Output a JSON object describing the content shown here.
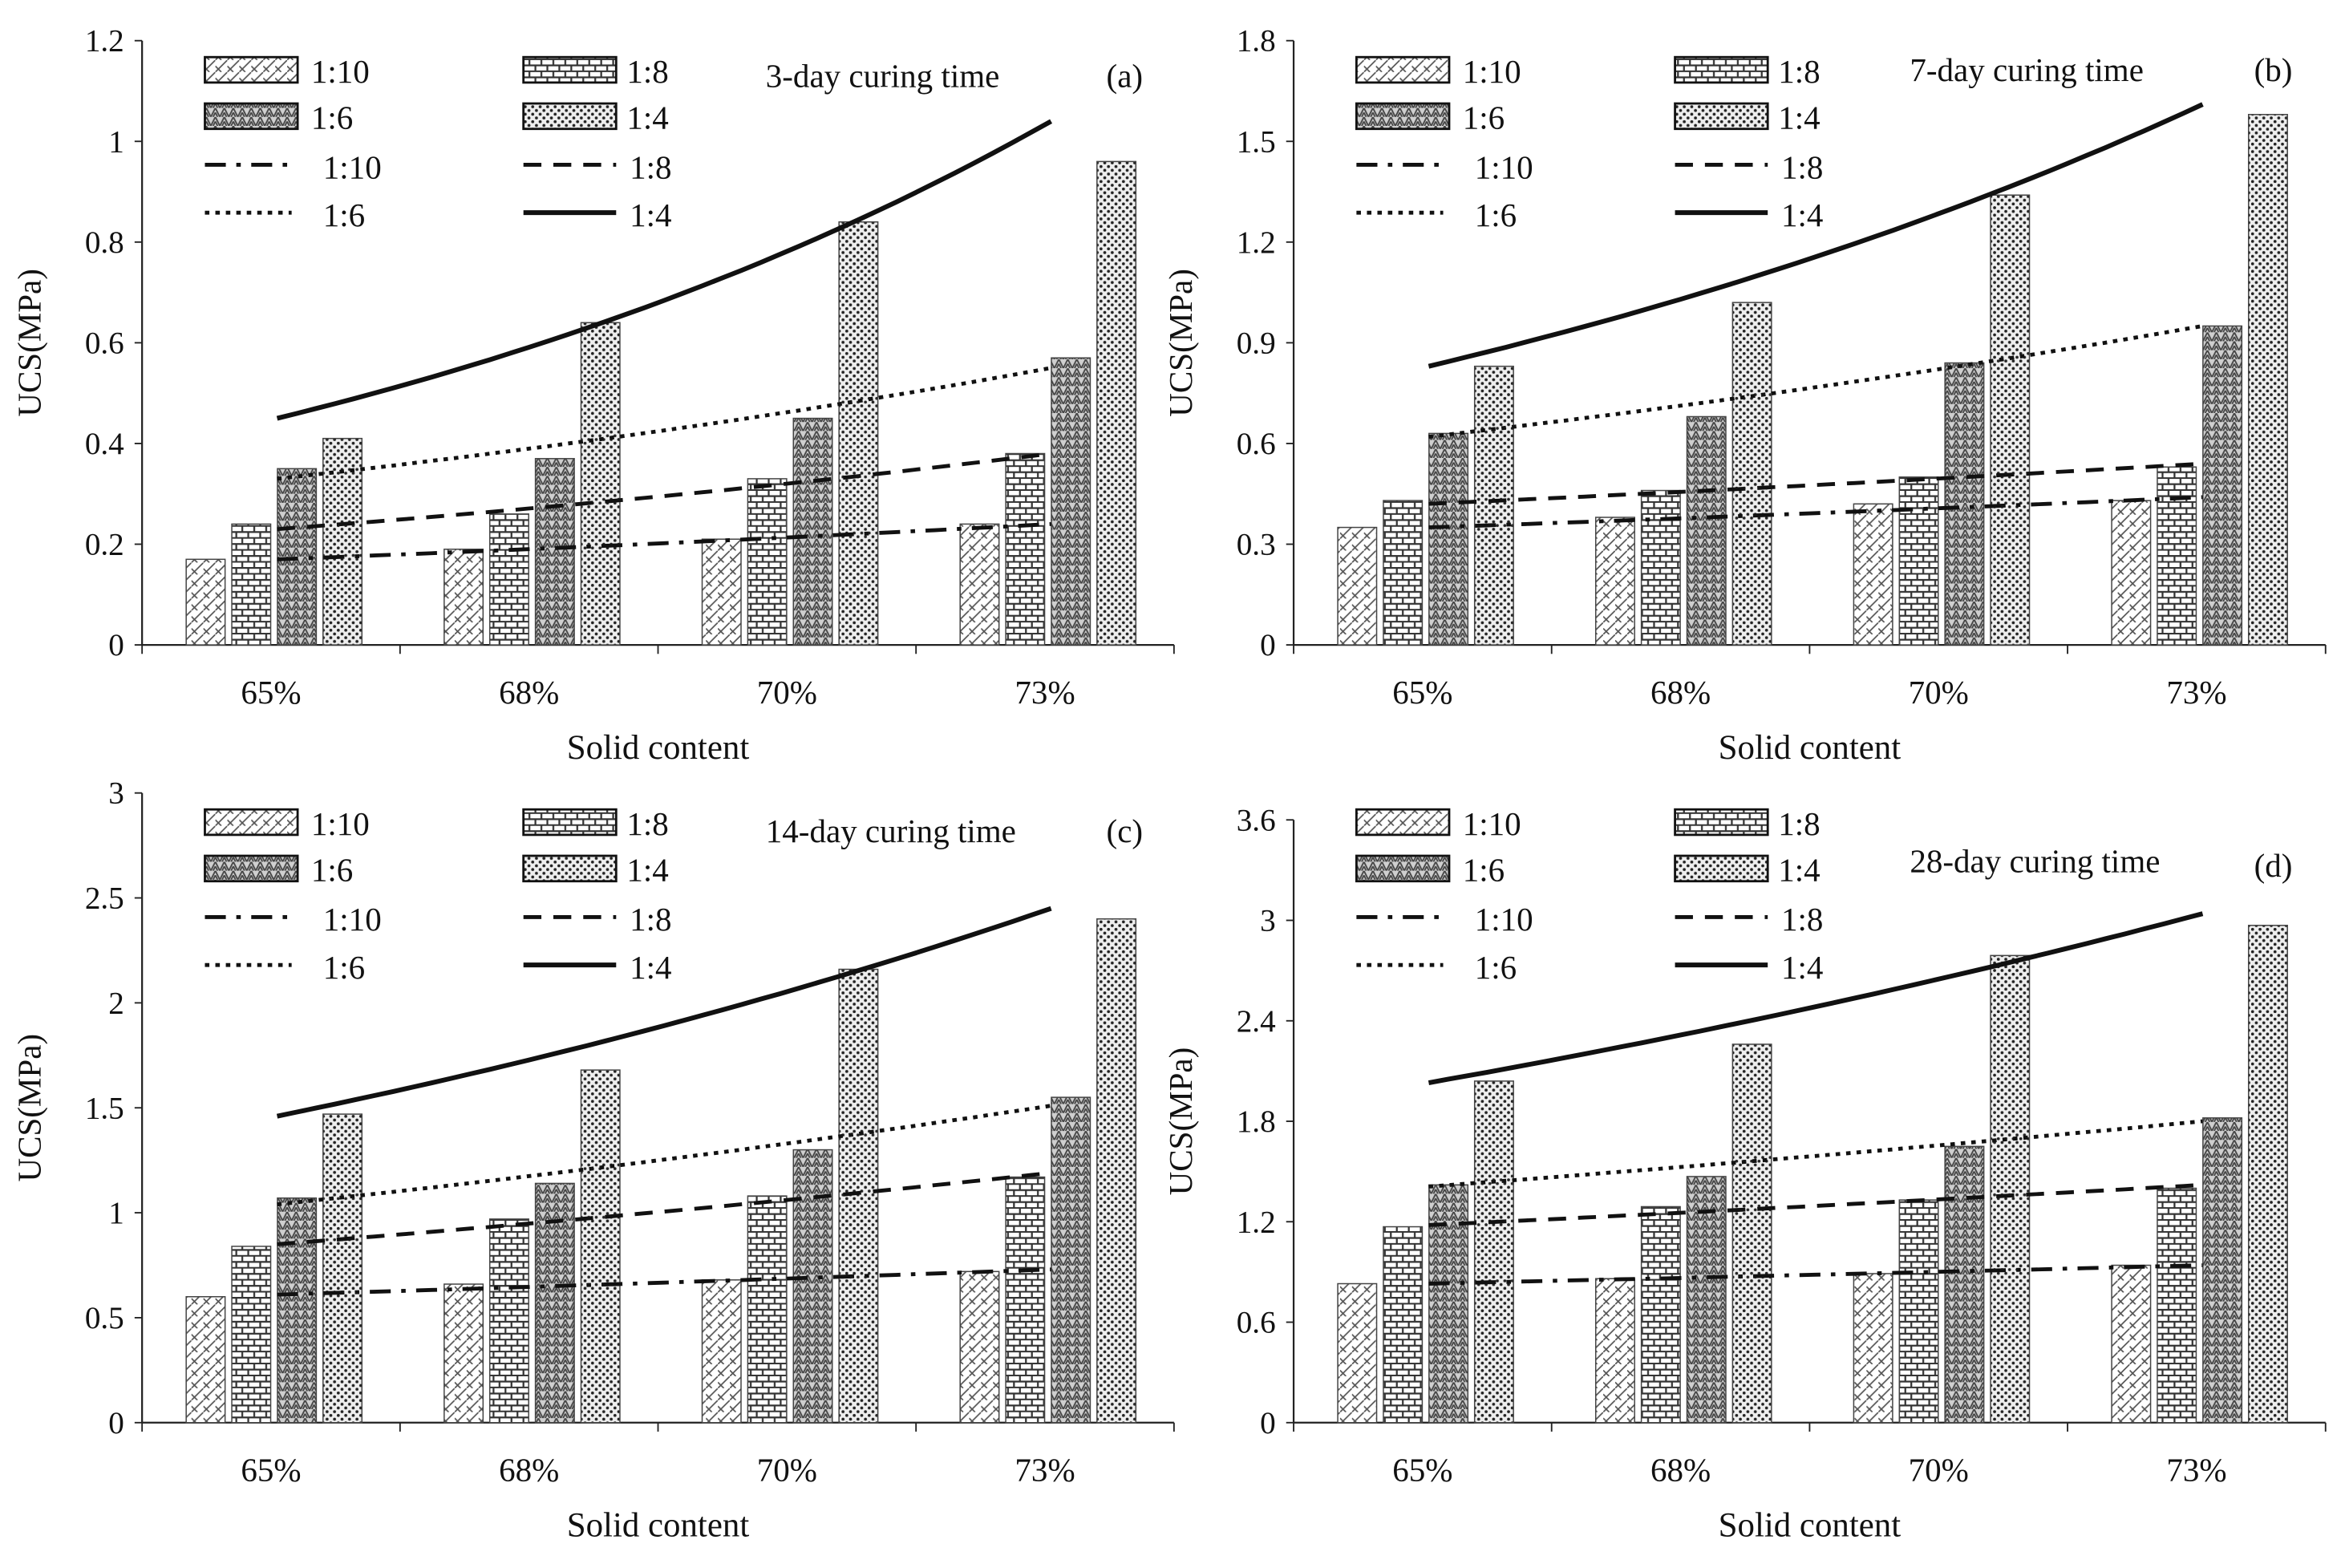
{
  "chart_data": [
    {
      "type": "bar",
      "panel_label": "(a)",
      "title": "3-day curing time",
      "xlabel": "Solid content",
      "ylabel": "UCS(MPa)",
      "ylim": [
        0,
        1.2
      ],
      "yticks": [
        "0",
        "0.2",
        "0.4",
        "0.6",
        "0.8",
        "1",
        "1.2"
      ],
      "categories": [
        "65%",
        "68%",
        "70%",
        "73%"
      ],
      "series": [
        {
          "name": "1:10",
          "values": [
            0.17,
            0.19,
            0.21,
            0.24
          ]
        },
        {
          "name": "1:8",
          "values": [
            0.24,
            0.26,
            0.33,
            0.38
          ]
        },
        {
          "name": "1:6",
          "values": [
            0.35,
            0.37,
            0.45,
            0.57
          ]
        },
        {
          "name": "1:4",
          "values": [
            0.41,
            0.64,
            0.84,
            0.96
          ]
        }
      ],
      "trendlines": [
        {
          "name": "1:10",
          "start": 0.17,
          "end": 0.24
        },
        {
          "name": "1:8",
          "start": 0.23,
          "end": 0.38
        },
        {
          "name": "1:6",
          "start": 0.33,
          "end": 0.55
        },
        {
          "name": "1:4",
          "start": 0.45,
          "end": 1.04
        }
      ]
    },
    {
      "type": "bar",
      "panel_label": "(b)",
      "title": "7-day curing time",
      "xlabel": "Solid content",
      "ylabel": "UCS(MPa)",
      "ylim": [
        0,
        1.8
      ],
      "yticks": [
        "0",
        "0.3",
        "0.6",
        "0.9",
        "1.2",
        "1.5",
        "1.8"
      ],
      "categories": [
        "65%",
        "68%",
        "70%",
        "73%"
      ],
      "series": [
        {
          "name": "1:10",
          "values": [
            0.35,
            0.38,
            0.42,
            0.43
          ]
        },
        {
          "name": "1:8",
          "values": [
            0.43,
            0.46,
            0.5,
            0.53
          ]
        },
        {
          "name": "1:6",
          "values": [
            0.63,
            0.68,
            0.84,
            0.95
          ]
        },
        {
          "name": "1:4",
          "values": [
            0.83,
            1.02,
            1.34,
            1.58
          ]
        }
      ],
      "trendlines": [
        {
          "name": "1:10",
          "start": 0.35,
          "end": 0.44
        },
        {
          "name": "1:8",
          "start": 0.42,
          "end": 0.54
        },
        {
          "name": "1:6",
          "start": 0.62,
          "end": 0.95
        },
        {
          "name": "1:4",
          "start": 0.83,
          "end": 1.61
        }
      ]
    },
    {
      "type": "bar",
      "panel_label": "(c)",
      "title": "14-day curing time",
      "xlabel": "Solid content",
      "ylabel": "UCS(MPa)",
      "ylim": [
        0,
        3
      ],
      "yticks": [
        "0",
        "0.5",
        "1",
        "1.5",
        "2",
        "2.5",
        "3"
      ],
      "categories": [
        "65%",
        "68%",
        "70%",
        "73%"
      ],
      "series": [
        {
          "name": "1:10",
          "values": [
            0.6,
            0.66,
            0.68,
            0.72
          ]
        },
        {
          "name": "1:8",
          "values": [
            0.84,
            0.97,
            1.08,
            1.17
          ]
        },
        {
          "name": "1:6",
          "values": [
            1.07,
            1.14,
            1.3,
            1.55
          ]
        },
        {
          "name": "1:4",
          "values": [
            1.47,
            1.68,
            2.16,
            2.4
          ]
        }
      ],
      "trendlines": [
        {
          "name": "1:10",
          "start": 0.61,
          "end": 0.73
        },
        {
          "name": "1:8",
          "start": 0.85,
          "end": 1.19
        },
        {
          "name": "1:6",
          "start": 1.04,
          "end": 1.51
        },
        {
          "name": "1:4",
          "start": 1.46,
          "end": 2.45
        }
      ]
    },
    {
      "type": "bar",
      "panel_label": "(d)",
      "title": "28-day curing time",
      "xlabel": "Solid content",
      "ylabel": "UCS(MPa)",
      "ylim": [
        0,
        3.6
      ],
      "yticks": [
        "0",
        "0.6",
        "1.2",
        "1.8",
        "2.4",
        "3",
        "3.6"
      ],
      "categories": [
        "65%",
        "68%",
        "70%",
        "73%"
      ],
      "series": [
        {
          "name": "1:10",
          "values": [
            0.83,
            0.86,
            0.89,
            0.94
          ]
        },
        {
          "name": "1:8",
          "values": [
            1.17,
            1.29,
            1.33,
            1.4
          ]
        },
        {
          "name": "1:6",
          "values": [
            1.42,
            1.47,
            1.65,
            1.82
          ]
        },
        {
          "name": "1:4",
          "values": [
            2.04,
            2.26,
            2.79,
            2.97
          ]
        }
      ],
      "trendlines": [
        {
          "name": "1:10",
          "start": 0.83,
          "end": 0.94
        },
        {
          "name": "1:8",
          "start": 1.18,
          "end": 1.42
        },
        {
          "name": "1:6",
          "start": 1.41,
          "end": 1.8
        },
        {
          "name": "1:4",
          "start": 2.03,
          "end": 3.04
        }
      ]
    }
  ],
  "legend": {
    "bars": [
      "1:10",
      "1:8",
      "1:6",
      "1:4"
    ],
    "lines": [
      "1:10",
      "1:8",
      "1:6",
      "1:4"
    ],
    "placement": "top-left"
  }
}
